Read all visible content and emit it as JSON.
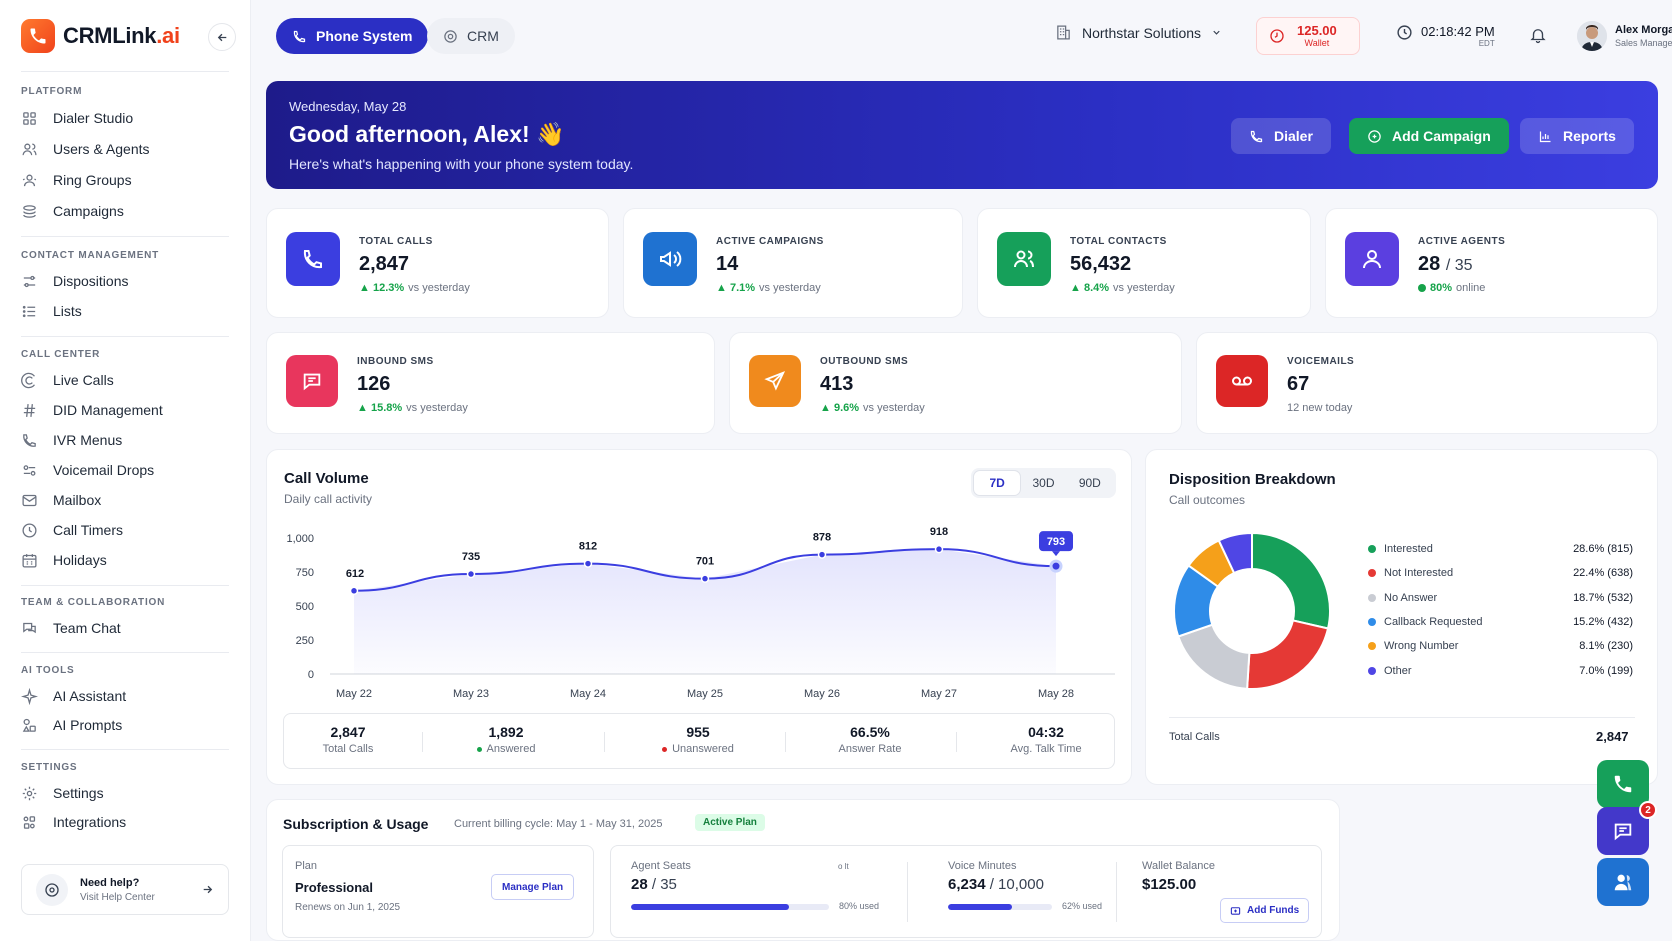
{
  "brand": {
    "name_main": "CRMLink",
    "name_suffix": ".ai"
  },
  "sidebar": {
    "sections": [
      {
        "title": "PLATFORM",
        "items": [
          "Dialer Studio",
          "Users & Agents",
          "Ring Groups",
          "Campaigns"
        ]
      },
      {
        "title": "CONTACT MANAGEMENT",
        "items": [
          "Dispositions",
          "Lists"
        ]
      },
      {
        "title": "CALL CENTER",
        "items": [
          "Live Calls",
          "DID Management",
          "IVR Menus",
          "Voicemail Drops",
          "Mailbox",
          "Call Timers",
          "Holidays"
        ]
      },
      {
        "title": "TEAM & COLLABORATION",
        "items": [
          "Team Chat"
        ]
      },
      {
        "title": "AI TOOLS",
        "items": [
          "AI Assistant",
          "AI Prompts"
        ]
      },
      {
        "title": "SETTINGS",
        "items": [
          "Settings",
          "Integrations"
        ]
      }
    ],
    "help": {
      "title": "Need help?",
      "subtitle": "Visit Help Center"
    }
  },
  "header": {
    "tabs": [
      "Phone System",
      "CRM"
    ],
    "org": "Northstar Solutions",
    "wallet": {
      "amount": "125.00",
      "label": "Wallet"
    },
    "clock": {
      "time": "02:18:42 PM",
      "zone": "EDT"
    },
    "user": {
      "name": "Alex Morgan",
      "role": "Sales Manager"
    }
  },
  "hero": {
    "date": "Wednesday, May 28",
    "greeting": "Good afternoon, Alex! 👋",
    "subtitle": "Here's what's happening with your phone system today.",
    "buttons": [
      "Dialer",
      "Add Campaign",
      "Reports"
    ]
  },
  "stats": [
    {
      "label": "TOTAL CALLS",
      "value": "2,847",
      "change": "12.3%",
      "note": "vs yesterday"
    },
    {
      "label": "ACTIVE CAMPAIGNS",
      "value": "14",
      "change": "7.1%",
      "note": "vs yesterday"
    },
    {
      "label": "TOTAL CONTACTS",
      "value": "56,432",
      "change": "8.4%",
      "note": "vs yesterday"
    },
    {
      "label": "ACTIVE AGENTS",
      "value": "28",
      "value_total": "/ 35",
      "change": "80%",
      "note": "online"
    },
    {
      "label": "INBOUND SMS",
      "value": "126",
      "change": "15.8%",
      "note": "vs yesterday"
    },
    {
      "label": "OUTBOUND SMS",
      "value": "413",
      "change": "9.6%",
      "note": "vs yesterday"
    },
    {
      "label": "VOICEMAILS",
      "value": "67",
      "note": "12 new today"
    }
  ],
  "call_volume": {
    "title": "Call Volume",
    "subtitle": "Daily call activity",
    "ranges": [
      "7D",
      "30D",
      "90D"
    ],
    "selected_range": "7D",
    "summary": [
      {
        "value": "2,847",
        "label": "Total Calls"
      },
      {
        "value": "1,892",
        "label": "Answered"
      },
      {
        "value": "955",
        "label": "Unanswered"
      },
      {
        "value": "66.5%",
        "label": "Answer Rate"
      },
      {
        "value": "04:32",
        "label": "Avg. Talk Time"
      }
    ]
  },
  "disposition": {
    "title": "Disposition Breakdown",
    "subtitle": "Call outcomes",
    "items": [
      {
        "name": "Interested",
        "pct": "28.6% (815)",
        "color": "#16a05a"
      },
      {
        "name": "Not Interested",
        "pct": "22.4% (638)",
        "color": "#e53935"
      },
      {
        "name": "No Answer",
        "pct": "18.7% (532)",
        "color": "#c9ccd3"
      },
      {
        "name": "Callback Requested",
        "pct": "15.2% (432)",
        "color": "#2f8ce8"
      },
      {
        "name": "Wrong Number",
        "pct": "8.1% (230)",
        "color": "#f5a01a"
      },
      {
        "name": "Other",
        "pct": "7.0% (199)",
        "color": "#4f46e5"
      }
    ],
    "total_label": "Total Calls",
    "total_value": "2,847"
  },
  "chart_data": {
    "type": "area",
    "title": "Call Volume",
    "categories": [
      "May 22",
      "May 23",
      "May 24",
      "May 25",
      "May 26",
      "May 27",
      "May 28"
    ],
    "values": [
      612,
      735,
      812,
      701,
      878,
      918,
      793
    ],
    "ylim": [
      0,
      1000
    ],
    "yticks": [
      "1,000",
      "750",
      "500",
      "250",
      "0"
    ],
    "grid": false
  },
  "subscription": {
    "title": "Subscription & Usage",
    "cycle": "Current billing cycle: May 1 - May 31, 2025",
    "badge": "Active Plan",
    "plan": {
      "label": "Plan",
      "name": "Professional",
      "renews": "Renews on Jun 1, 2025",
      "button": "Manage Plan"
    },
    "seats": {
      "label": "Agent Seats",
      "value": "28",
      "total": "/ 35",
      "used": "80% used",
      "fraction": 0.8,
      "tiny": "o lt"
    },
    "minutes": {
      "label": "Voice Minutes",
      "value": "6,234",
      "total": "/ 10,000",
      "used": "62% used",
      "fraction": 0.62
    },
    "wallet": {
      "label": "Wallet Balance",
      "value": "$125.00",
      "button": "Add Funds"
    }
  },
  "fabs": {
    "chat_badge": "2"
  },
  "colors": {
    "primary": "#2b2fc4",
    "green": "#16a05a",
    "orange": "#f08a1d",
    "red": "#e53935",
    "pink": "#e8365d",
    "purple": "#5b3fe0"
  }
}
